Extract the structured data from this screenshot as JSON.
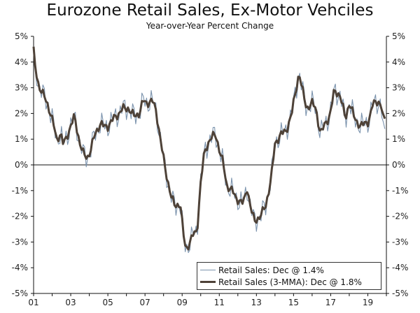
{
  "title": "Eurozone Retail Sales, Ex-Motor Vehciles",
  "subtitle": "Year-over-Year Percent Change",
  "colors": {
    "monthly": "#7b93ad",
    "mma": "#4e4238",
    "axis": "#111111"
  },
  "legend": {
    "placement": "bottom-right",
    "entries": [
      "Retail Sales: Dec @ 1.4%",
      "Retail Sales (3-MMA): Dec @ 1.8%"
    ]
  },
  "chart_data": {
    "type": "line",
    "title": "Eurozone Retail Sales, Ex-Motor Vehciles",
    "subtitle": "Year-over-Year Percent Change",
    "xlabel": "",
    "ylabel": "",
    "xlim": [
      2001.0,
      2020.0
    ],
    "ylim": [
      -5,
      5
    ],
    "y_ticks": [
      5,
      4,
      3,
      2,
      1,
      0,
      -1,
      -2,
      -3,
      -4,
      -5
    ],
    "y_tick_labels": [
      "5%",
      "4%",
      "3%",
      "2%",
      "1%",
      "0%",
      "-1%",
      "-2%",
      "-3%",
      "-4%",
      "-5%"
    ],
    "x_ticks": [
      2001,
      2003,
      2005,
      2007,
      2009,
      2011,
      2013,
      2015,
      2017,
      2019
    ],
    "x_tick_labels": [
      "01",
      "03",
      "05",
      "07",
      "09",
      "11",
      "13",
      "15",
      "17",
      "19"
    ],
    "right_axis_duplicate": true,
    "zero_line": true,
    "grid": false,
    "series": [
      {
        "name": "Retail Sales: Dec @ 1.4%",
        "anchor_x": [
          2001.0,
          2001.05,
          2001.3,
          2001.7,
          2001.9,
          2002.1,
          2002.25,
          2002.45,
          2002.6,
          2002.9,
          2003.2,
          2003.5,
          2003.7,
          2003.9,
          2004.05,
          2004.3,
          2004.6,
          2004.8,
          2005.0,
          2005.3,
          2005.6,
          2005.8,
          2006.1,
          2006.4,
          2006.7,
          2006.9,
          2007.1,
          2007.4,
          2007.6,
          2007.85,
          2008.1,
          2008.4,
          2008.6,
          2008.9,
          2009.05,
          2009.2,
          2009.35,
          2009.6,
          2009.8,
          2010.0,
          2010.2,
          2010.5,
          2010.8,
          2011.0,
          2011.2,
          2011.4,
          2011.7,
          2011.9,
          2012.1,
          2012.3,
          2012.5,
          2012.7,
          2012.9,
          2013.2,
          2013.5,
          2013.8,
          2014.0,
          2014.3,
          2014.6,
          2014.9,
          2015.15,
          2015.3,
          2015.45,
          2015.7,
          2016.0,
          2016.2,
          2016.45,
          2016.7,
          2016.95,
          2017.2,
          2017.5,
          2017.8,
          2018.0,
          2018.3,
          2018.6,
          2018.8,
          2019.05,
          2019.25,
          2019.45,
          2019.65,
          2019.9
        ],
        "anchor_y": [
          4.6,
          4.0,
          3.0,
          2.5,
          2.0,
          1.5,
          1.0,
          1.2,
          0.8,
          1.3,
          1.9,
          0.8,
          0.4,
          0.3,
          0.5,
          1.2,
          1.6,
          1.5,
          1.5,
          1.8,
          2.0,
          2.2,
          2.2,
          1.9,
          2.0,
          2.5,
          2.4,
          2.5,
          2.1,
          0.9,
          -0.2,
          -1.2,
          -1.6,
          -1.5,
          -2.6,
          -3.3,
          -3.1,
          -2.7,
          -2.6,
          -0.7,
          0.5,
          1.0,
          1.2,
          0.6,
          0.1,
          -0.8,
          -1.0,
          -1.3,
          -1.4,
          -1.5,
          -0.9,
          -1.7,
          -2.2,
          -2.0,
          -1.6,
          -0.5,
          0.8,
          1.2,
          1.3,
          2.0,
          3.0,
          3.6,
          3.0,
          2.2,
          2.4,
          2.2,
          1.2,
          1.6,
          1.9,
          2.9,
          2.7,
          1.8,
          2.4,
          1.8,
          1.5,
          1.6,
          1.7,
          2.3,
          2.5,
          2.4,
          1.4
        ],
        "wiggle": 0.55
      },
      {
        "name": "Retail Sales (3-MMA): Dec @ 1.8%",
        "anchor_x": [
          2001.0,
          2001.05,
          2001.3,
          2001.7,
          2001.9,
          2002.1,
          2002.25,
          2002.45,
          2002.6,
          2002.9,
          2003.2,
          2003.5,
          2003.7,
          2003.9,
          2004.05,
          2004.3,
          2004.6,
          2004.8,
          2005.0,
          2005.3,
          2005.6,
          2005.8,
          2006.1,
          2006.4,
          2006.7,
          2006.9,
          2007.1,
          2007.4,
          2007.6,
          2007.85,
          2008.1,
          2008.4,
          2008.6,
          2008.9,
          2009.05,
          2009.2,
          2009.35,
          2009.6,
          2009.8,
          2010.0,
          2010.2,
          2010.5,
          2010.8,
          2011.0,
          2011.2,
          2011.4,
          2011.7,
          2011.9,
          2012.1,
          2012.3,
          2012.5,
          2012.7,
          2012.9,
          2013.2,
          2013.5,
          2013.8,
          2014.0,
          2014.3,
          2014.6,
          2014.9,
          2015.15,
          2015.3,
          2015.45,
          2015.7,
          2016.0,
          2016.2,
          2016.45,
          2016.7,
          2016.95,
          2017.2,
          2017.5,
          2017.8,
          2018.0,
          2018.3,
          2018.6,
          2018.8,
          2019.05,
          2019.25,
          2019.45,
          2019.65,
          2019.9
        ],
        "anchor_y": [
          4.6,
          4.0,
          3.0,
          2.5,
          2.0,
          1.5,
          1.0,
          1.2,
          0.8,
          1.3,
          1.9,
          0.8,
          0.4,
          0.3,
          0.5,
          1.2,
          1.6,
          1.5,
          1.5,
          1.8,
          2.0,
          2.2,
          2.2,
          1.9,
          2.0,
          2.5,
          2.4,
          2.5,
          2.1,
          0.9,
          -0.2,
          -1.2,
          -1.6,
          -1.5,
          -2.6,
          -3.3,
          -3.1,
          -2.7,
          -2.6,
          -0.7,
          0.5,
          1.0,
          1.2,
          0.6,
          0.1,
          -0.8,
          -1.0,
          -1.3,
          -1.4,
          -1.5,
          -0.9,
          -1.7,
          -2.2,
          -2.0,
          -1.6,
          -0.5,
          0.8,
          1.2,
          1.3,
          2.0,
          3.0,
          3.6,
          3.0,
          2.2,
          2.4,
          2.2,
          1.2,
          1.6,
          1.9,
          2.9,
          2.7,
          1.8,
          2.4,
          1.8,
          1.5,
          1.6,
          1.7,
          2.3,
          2.5,
          2.4,
          1.8
        ],
        "wiggle": 0.18
      }
    ]
  }
}
